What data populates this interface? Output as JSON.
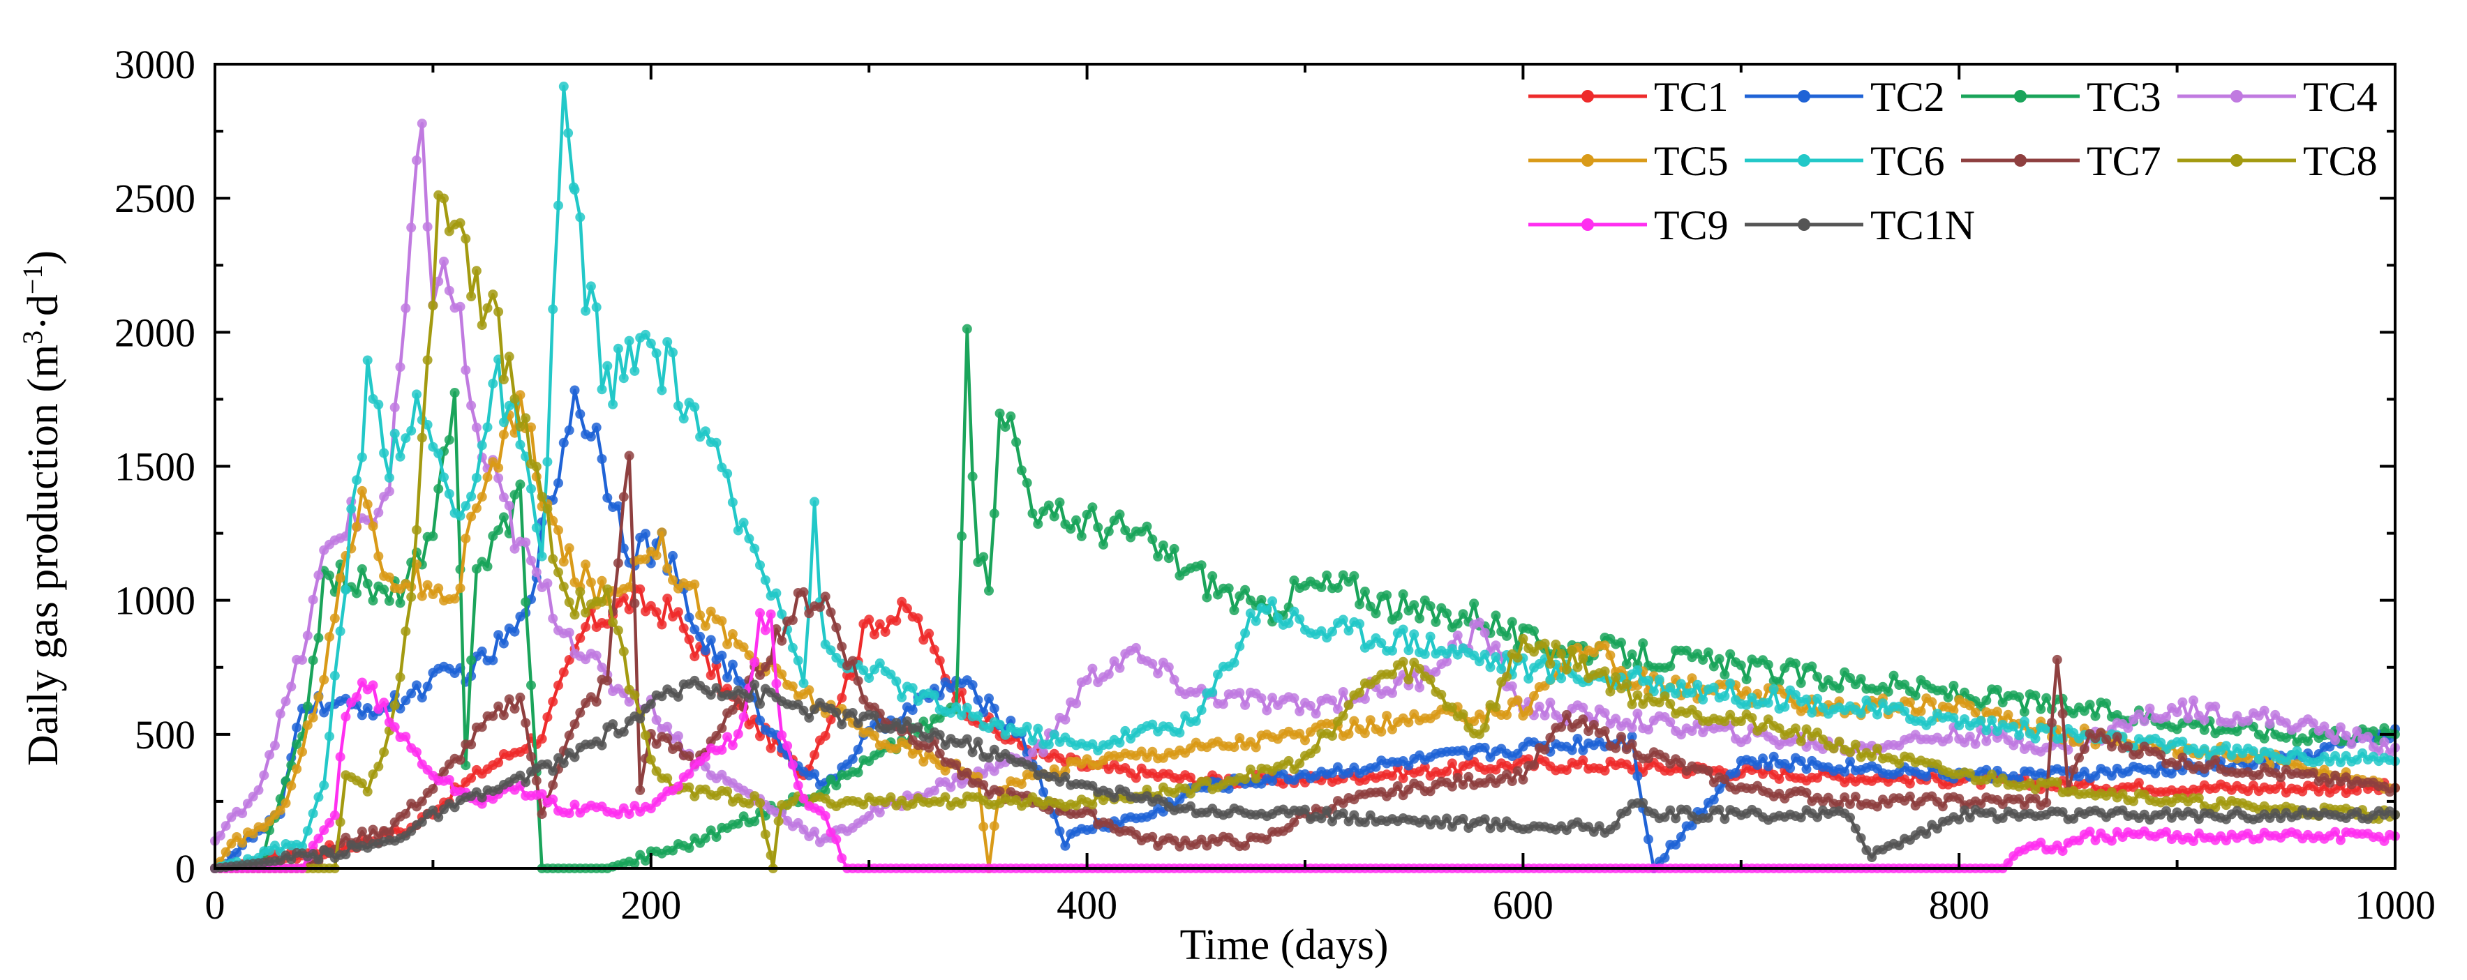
{
  "chart_data": {
    "type": "line",
    "title": "",
    "xlabel": "Time (days)",
    "ylabel": {
      "main": "Daily gas production (m",
      "sup1": "3",
      "mid": "·d",
      "sup2": "−1",
      "end": ")"
    },
    "xlim": [
      0,
      1000
    ],
    "ylim": [
      0,
      3000
    ],
    "xticks": [
      0,
      200,
      400,
      600,
      800,
      1000
    ],
    "yticks": [
      0,
      500,
      1000,
      1500,
      2000,
      2500,
      3000
    ],
    "xtick_labels": [
      "0",
      "200",
      "400",
      "600",
      "800",
      "1000"
    ],
    "ytick_labels": [
      "0",
      "500",
      "1000",
      "1500",
      "2000",
      "2500",
      "3000"
    ],
    "grid": false,
    "legend_position": "top-right",
    "series": [
      {
        "name": "TC1",
        "color": "#ee2b2b",
        "x": [
          0,
          30,
          60,
          90,
          120,
          150,
          170,
          190,
          210,
          240,
          270,
          290,
          300,
          320,
          330,
          345,
          360,
          380,
          400,
          450,
          500,
          550,
          600,
          650,
          700,
          750,
          800,
          850,
          900,
          950,
          1000
        ],
        "y": [
          0,
          40,
          80,
          150,
          350,
          500,
          900,
          1000,
          950,
          600,
          350,
          700,
          920,
          950,
          800,
          600,
          500,
          420,
          380,
          330,
          330,
          360,
          390,
          380,
          360,
          340,
          330,
          310,
          300,
          300,
          300
        ]
      },
      {
        "name": "TC2",
        "color": "#1f63d6",
        "x": [
          0,
          30,
          40,
          60,
          80,
          100,
          120,
          140,
          155,
          165,
          175,
          190,
          205,
          220,
          240,
          260,
          280,
          300,
          320,
          340,
          370,
          390,
          400,
          430,
          450,
          500,
          550,
          600,
          650,
          660,
          700,
          750,
          800,
          850,
          900,
          950,
          1000
        ],
        "y": [
          0,
          200,
          620,
          600,
          600,
          700,
          750,
          900,
          1400,
          1780,
          1600,
          1200,
          1200,
          900,
          700,
          450,
          300,
          500,
          600,
          700,
          500,
          100,
          150,
          200,
          300,
          350,
          400,
          450,
          480,
          0,
          400,
          380,
          350,
          350,
          370,
          400,
          520
        ]
      },
      {
        "name": "TC3",
        "color": "#1aa45a",
        "x": [
          0,
          20,
          40,
          50,
          60,
          80,
          100,
          110,
          115,
          120,
          140,
          150,
          160,
          170,
          180,
          200,
          220,
          250,
          280,
          300,
          320,
          340,
          345,
          350,
          355,
          360,
          370,
          380,
          400,
          420,
          450,
          480,
          500,
          520,
          550,
          580,
          600,
          650,
          700,
          750,
          800,
          850,
          900,
          950,
          1000
        ],
        "y": [
          0,
          0,
          500,
          1050,
          1100,
          1000,
          1200,
          1850,
          400,
          1100,
          1400,
          0,
          0,
          0,
          0,
          50,
          100,
          200,
          300,
          400,
          500,
          600,
          1900,
          1200,
          1000,
          1800,
          1500,
          1300,
          1300,
          1250,
          1100,
          950,
          1050,
          1050,
          950,
          950,
          850,
          800,
          750,
          700,
          650,
          600,
          550,
          500,
          500
        ]
      },
      {
        "name": "TC4",
        "color": "#c07ae0",
        "x": [
          0,
          20,
          40,
          50,
          60,
          70,
          80,
          90,
          95,
          100,
          110,
          120,
          140,
          160,
          180,
          200,
          220,
          240,
          260,
          280,
          300,
          330,
          350,
          380,
          400,
          420,
          450,
          500,
          550,
          580,
          600,
          650,
          700,
          750,
          800,
          850,
          880,
          900,
          950,
          1000
        ],
        "y": [
          100,
          300,
          800,
          1150,
          1300,
          1300,
          1400,
          2300,
          2700,
          2200,
          2150,
          1600,
          1200,
          900,
          700,
          600,
          400,
          300,
          200,
          100,
          200,
          300,
          350,
          450,
          700,
          800,
          650,
          600,
          700,
          900,
          600,
          550,
          500,
          450,
          500,
          450,
          550,
          600,
          550,
          450
        ]
      },
      {
        "name": "TC5",
        "color": "#d99a18",
        "x": [
          0,
          10,
          30,
          50,
          60,
          70,
          80,
          90,
          100,
          110,
          120,
          140,
          160,
          180,
          190,
          200,
          230,
          260,
          300,
          330,
          350,
          355,
          360,
          380,
          400,
          450,
          500,
          550,
          600,
          630,
          650,
          700,
          750,
          800,
          850,
          900,
          950,
          1000
        ],
        "y": [
          0,
          100,
          200,
          700,
          1200,
          1400,
          1050,
          1100,
          1000,
          950,
          1400,
          1700,
          1150,
          1000,
          1100,
          1250,
          900,
          700,
          500,
          400,
          350,
          0,
          300,
          350,
          400,
          450,
          500,
          550,
          600,
          850,
          700,
          650,
          600,
          600,
          500,
          450,
          400,
          300
        ]
      },
      {
        "name": "TC6",
        "color": "#22c8c8",
        "x": [
          0,
          20,
          40,
          50,
          60,
          70,
          80,
          90,
          100,
          110,
          120,
          130,
          140,
          150,
          160,
          162,
          165,
          170,
          180,
          200,
          220,
          240,
          260,
          270,
          275,
          280,
          290,
          300,
          320,
          350,
          400,
          420,
          450,
          480,
          500,
          550,
          600,
          650,
          700,
          750,
          800,
          850,
          900,
          950,
          1000
        ],
        "y": [
          0,
          50,
          100,
          300,
          1100,
          1800,
          1550,
          1700,
          1600,
          1300,
          1500,
          1800,
          1600,
          1100,
          2950,
          2700,
          2450,
          2200,
          1800,
          1950,
          1700,
          1300,
          1000,
          700,
          1300,
          800,
          750,
          750,
          650,
          550,
          450,
          500,
          550,
          1000,
          900,
          850,
          750,
          700,
          650,
          600,
          550,
          500,
          450,
          420,
          400
        ]
      },
      {
        "name": "TC7",
        "color": "#8e3f3f",
        "x": [
          0,
          40,
          60,
          80,
          100,
          120,
          140,
          150,
          160,
          170,
          180,
          190,
          195,
          200,
          220,
          240,
          260,
          270,
          280,
          290,
          300,
          330,
          350,
          400,
          430,
          440,
          480,
          500,
          520,
          550,
          600,
          620,
          650,
          700,
          750,
          800,
          840,
          845,
          850,
          860,
          900,
          950,
          1000
        ],
        "y": [
          0,
          0,
          100,
          150,
          300,
          500,
          650,
          200,
          450,
          600,
          700,
          1600,
          300,
          500,
          400,
          600,
          900,
          1000,
          1000,
          800,
          600,
          450,
          300,
          200,
          100,
          100,
          100,
          200,
          250,
          300,
          350,
          550,
          450,
          300,
          250,
          250,
          250,
          800,
          300,
          500,
          400,
          350,
          300
        ]
      },
      {
        "name": "TC8",
        "color": "#a39a10",
        "x": [
          0,
          40,
          55,
          60,
          70,
          80,
          90,
          100,
          105,
          110,
          120,
          130,
          140,
          150,
          160,
          170,
          180,
          200,
          210,
          250,
          256,
          260,
          300,
          350,
          400,
          450,
          500,
          530,
          550,
          580,
          600,
          630,
          650,
          700,
          750,
          800,
          850,
          900,
          950,
          1000
        ],
        "y": [
          0,
          0,
          0,
          350,
          300,
          500,
          1000,
          2200,
          2550,
          2450,
          2200,
          2000,
          1700,
          1450,
          1000,
          1000,
          1000,
          400,
          300,
          250,
          0,
          250,
          250,
          250,
          250,
          300,
          400,
          700,
          750,
          500,
          850,
          750,
          650,
          550,
          450,
          350,
          300,
          250,
          220,
          200
        ]
      },
      {
        "name": "TC9",
        "color": "#ff2ff0",
        "x": [
          0,
          40,
          55,
          60,
          70,
          80,
          100,
          120,
          140,
          160,
          180,
          200,
          210,
          230,
          240,
          250,
          255,
          260,
          270,
          280,
          290,
          300,
          350,
          400,
          500,
          600,
          700,
          800,
          820,
          830,
          850,
          860,
          900,
          950,
          1000
        ],
        "y": [
          0,
          0,
          200,
          600,
          700,
          550,
          350,
          250,
          300,
          220,
          220,
          220,
          300,
          450,
          500,
          900,
          950,
          500,
          250,
          200,
          0,
          0,
          0,
          0,
          0,
          0,
          0,
          0,
          0,
          80,
          80,
          120,
          120,
          120,
          120
        ]
      },
      {
        "name": "TC1N",
        "color": "#555555",
        "x": [
          0,
          50,
          80,
          100,
          130,
          160,
          200,
          220,
          250,
          270,
          300,
          330,
          350,
          400,
          450,
          500,
          550,
          600,
          640,
          650,
          660,
          700,
          750,
          760,
          800,
          850,
          900,
          950,
          1000
        ],
        "y": [
          0,
          50,
          100,
          200,
          300,
          400,
          600,
          700,
          650,
          600,
          550,
          500,
          450,
          300,
          220,
          200,
          180,
          160,
          150,
          250,
          200,
          200,
          200,
          50,
          200,
          200,
          200,
          200,
          200
        ]
      }
    ]
  }
}
